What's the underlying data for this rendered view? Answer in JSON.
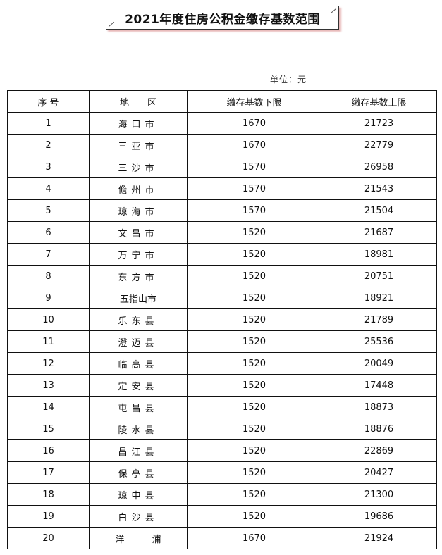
{
  "title": "2021年度住房公积金缴存基数范围",
  "unit": "单位：元",
  "headers": [
    "序 号",
    "地　　区",
    "缴存基数下限",
    "缴存基数上限"
  ],
  "rows": [
    [
      "1",
      "海口市",
      "1670",
      "21723"
    ],
    [
      "2",
      "三亚市",
      "1670",
      "22779"
    ],
    [
      "3",
      "三沙市",
      "1570",
      "26958"
    ],
    [
      "4",
      "儋州市",
      "1570",
      "21543"
    ],
    [
      "5",
      "琼海市",
      "1570",
      "21504"
    ],
    [
      "6",
      "文昌市",
      "1520",
      "21687"
    ],
    [
      "7",
      "万宁市",
      "1520",
      "18981"
    ],
    [
      "8",
      "东方市",
      "1520",
      "20751"
    ],
    [
      "9",
      "五指山市",
      "1520",
      "18921"
    ],
    [
      "10",
      "乐东县",
      "1520",
      "21789"
    ],
    [
      "11",
      "澄迈县",
      "1520",
      "25536"
    ],
    [
      "12",
      "临高县",
      "1520",
      "20049"
    ],
    [
      "13",
      "定安县",
      "1520",
      "17448"
    ],
    [
      "14",
      "屯昌县",
      "1520",
      "18873"
    ],
    [
      "15",
      "陵水县",
      "1520",
      "18876"
    ],
    [
      "16",
      "昌江县",
      "1520",
      "22869"
    ],
    [
      "17",
      "保亭县",
      "1520",
      "20427"
    ],
    [
      "18",
      "琼中县",
      "1520",
      "21300"
    ],
    [
      "19",
      "白沙县",
      "1520",
      "19686"
    ],
    [
      "20",
      "洋　　　浦",
      "1670",
      "21924"
    ]
  ]
}
